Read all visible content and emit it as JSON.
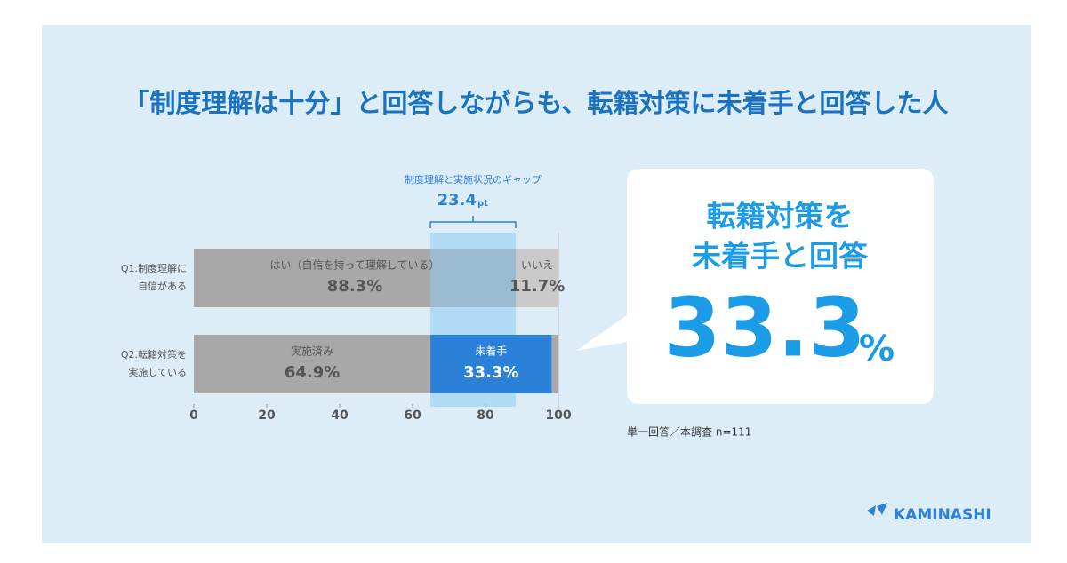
{
  "chart_data": {
    "type": "stacked-bar",
    "title": "「制度理解は十分」と回答しながらも、転籍対策に未着手と回答した人",
    "xlim": [
      0,
      100
    ],
    "xticks": [
      0,
      20,
      40,
      60,
      80,
      100
    ],
    "bars": [
      {
        "label": [
          "Q1.制度理解に",
          "自信がある"
        ],
        "segments": [
          {
            "name": "はい（自信を持って理解している）",
            "value": 88.3,
            "value_label": "88.3%",
            "color": "#a8a8a8"
          },
          {
            "name": "いいえ",
            "value": 11.7,
            "value_label": "11.7%",
            "color": "#cacaca"
          }
        ]
      },
      {
        "label": [
          "Q2.転籍対策を",
          "実施している"
        ],
        "segments": [
          {
            "name": "実施済み",
            "value": 64.9,
            "value_label": "64.9%",
            "color": "#a8a8a8"
          },
          {
            "name": "未着手",
            "value": 33.3,
            "value_label": "33.3%",
            "color": "#2b80d8"
          },
          {
            "value": 1.8,
            "color": "#a8a8a8"
          }
        ]
      }
    ],
    "gap": {
      "label": "制度理解と実施状況のギャップ",
      "value": 23.4,
      "unit": "pt"
    },
    "callout": {
      "lines": [
        "転籍対策を",
        "未着手と回答"
      ],
      "value": 33.3,
      "unit": "%"
    },
    "note": "単一回答／本調査 n=111",
    "logo": "KAMINASHI"
  }
}
